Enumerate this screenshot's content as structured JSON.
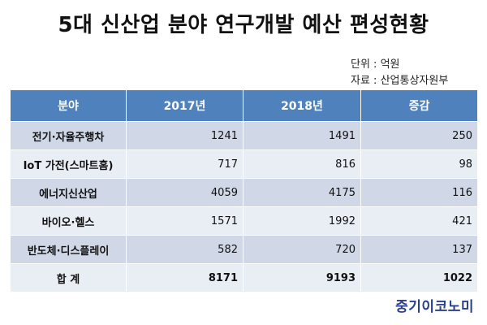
{
  "chart_data": {
    "type": "table",
    "title": "5대 신산업 분야 연구개발 예산 편성현황",
    "unit": "단위 : 억원",
    "source": "자료 : 산업통상자원부",
    "columns": [
      "분야",
      "2017년",
      "2018년",
      "증감"
    ],
    "rows": [
      {
        "category": "전기·자율주행차",
        "y2017": "1241",
        "y2018": "1491",
        "change": "250"
      },
      {
        "category": "IoT 가전(스마트홈)",
        "y2017": "717",
        "y2018": "816",
        "change": "98"
      },
      {
        "category": "에너지신산업",
        "y2017": "4059",
        "y2018": "4175",
        "change": "116"
      },
      {
        "category": "바이오·헬스",
        "y2017": "1571",
        "y2018": "1992",
        "change": "421"
      },
      {
        "category": "반도체·디스플레이",
        "y2017": "582",
        "y2018": "720",
        "change": "137"
      }
    ],
    "total": {
      "category": "합 계",
      "y2017": "8171",
      "y2018": "9193",
      "change": "1022"
    }
  },
  "logo": "중기이코노미",
  "colors": {
    "header_bg": "#4f81bd",
    "row_odd": "#d0d8e8",
    "row_even": "#e9edf4",
    "logo": "#2b3f8f"
  }
}
